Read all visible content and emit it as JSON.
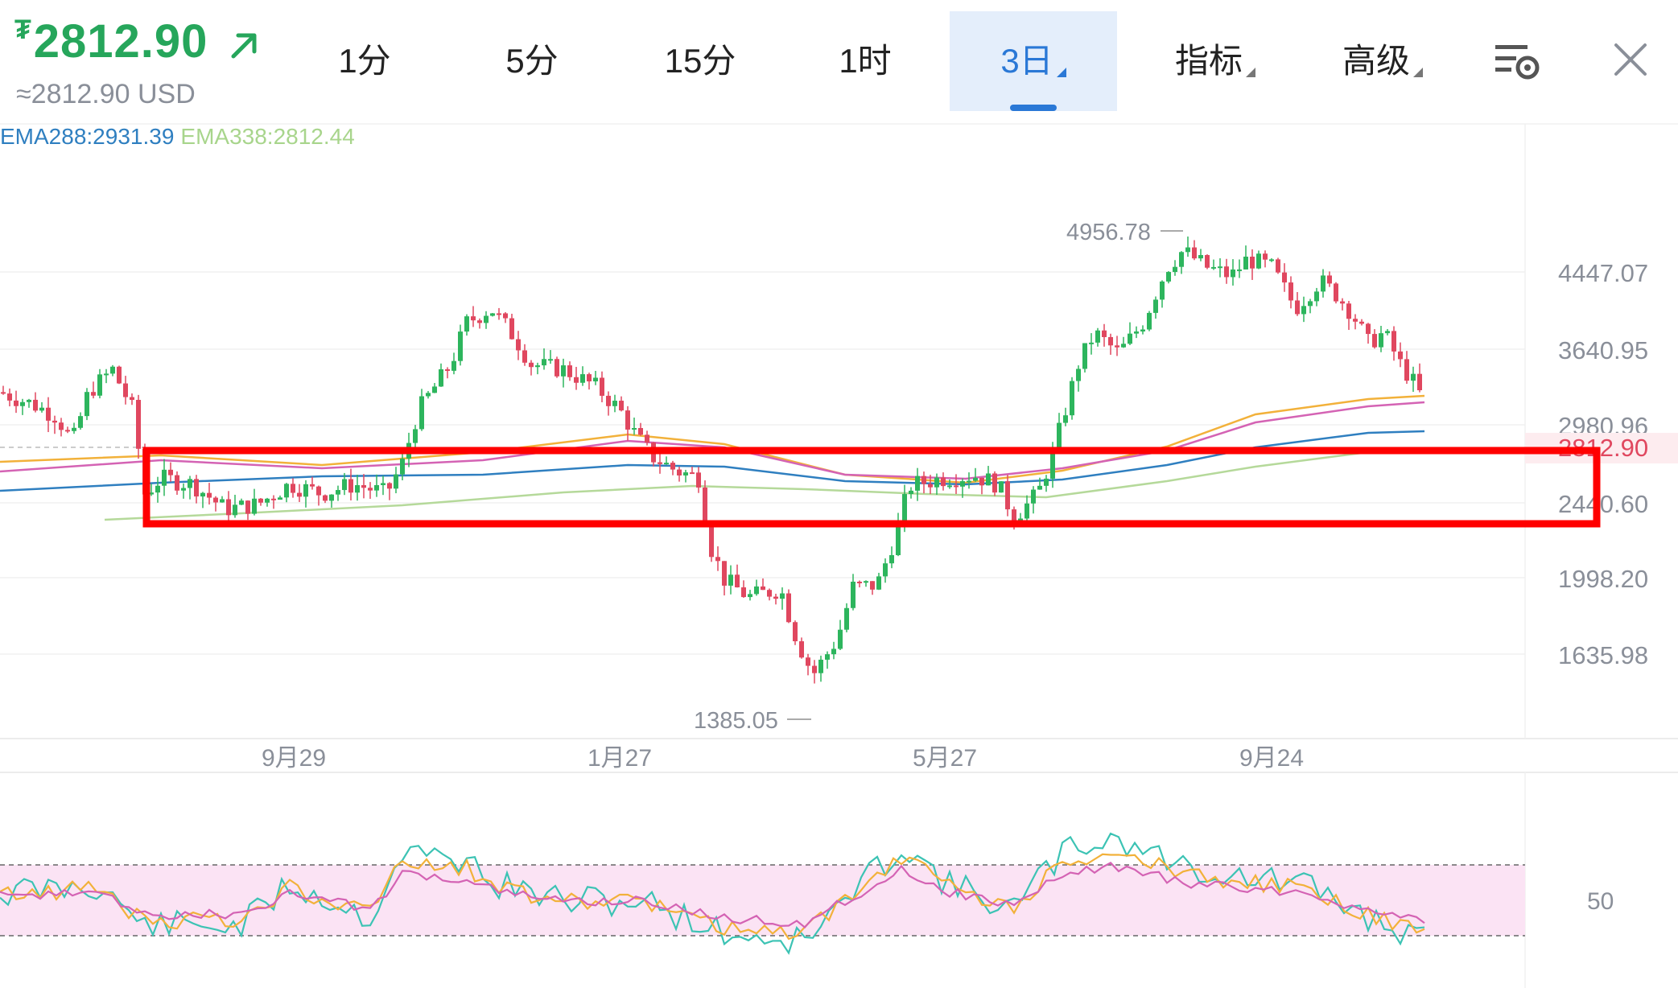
{
  "header": {
    "price": "2812.90",
    "currency_symbol": "₮",
    "usd_price": "≈2812.90 USD",
    "trend_icon": "up-right-arrow-icon"
  },
  "tabs": [
    {
      "label": "1分",
      "active": false
    },
    {
      "label": "5分",
      "active": false
    },
    {
      "label": "15分",
      "active": false
    },
    {
      "label": "1时",
      "active": false
    },
    {
      "label": "3日",
      "active": true,
      "dropdown": true
    },
    {
      "label": "指标",
      "active": false,
      "dropdown": true
    },
    {
      "label": "高级",
      "active": false,
      "dropdown": true
    }
  ],
  "toolbar": {
    "settings_icon": "chart-settings-icon",
    "close_icon": "close-icon"
  },
  "indicators": {
    "ema288": "EMA288:2931.39",
    "ema338": "EMA338:2812.44"
  },
  "chart_data": {
    "type": "candlestick",
    "y_ticks": [
      "4447.07",
      "3640.95",
      "2980.96",
      "2440.60",
      "1998.20",
      "1635.98"
    ],
    "x_ticks": [
      "9月29",
      "1月27",
      "5月27",
      "9月24"
    ],
    "last_price_label": "2812.90",
    "high_label": "4956.78",
    "low_label": "1385.05",
    "colors": {
      "up": "#2db55d",
      "down": "#e0475f",
      "ema_blue": "#2f7fc0",
      "ema_yellow": "#f2b13a",
      "ema_pink": "#d463b4",
      "ema_green": "#b5d99a",
      "highlight_box": "#ff0000"
    },
    "rsi": {
      "level_label": "50",
      "band_color": "#fbe3f4"
    }
  }
}
